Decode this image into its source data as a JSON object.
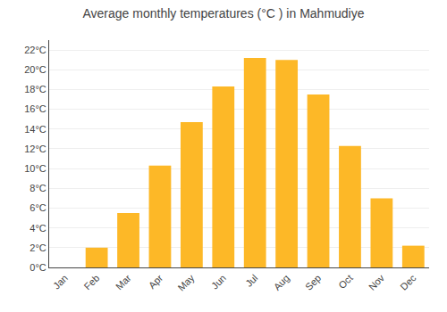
{
  "chart_data": {
    "type": "bar",
    "title": "Average monthly temperatures (°C ) in Mahmudiye",
    "categories": [
      "Jan",
      "Feb",
      "Mar",
      "Apr",
      "May",
      "Jun",
      "Jul",
      "Aug",
      "Sep",
      "Oct",
      "Nov",
      "Dec"
    ],
    "values": [
      0,
      2,
      5.5,
      10.3,
      14.7,
      18.3,
      21.2,
      21.0,
      17.5,
      12.3,
      7.0,
      2.2
    ],
    "color": "#FDB827",
    "ylim": [
      0,
      23
    ],
    "yticks": [
      {
        "value": 0,
        "label": "0°C"
      },
      {
        "value": 2,
        "label": "2°C"
      },
      {
        "value": 4,
        "label": "4°C"
      },
      {
        "value": 6,
        "label": "6°C"
      },
      {
        "value": 8,
        "label": "8°C"
      },
      {
        "value": 10,
        "label": "10°C"
      },
      {
        "value": 12,
        "label": "12°C"
      },
      {
        "value": 14,
        "label": "14°C"
      },
      {
        "value": 16,
        "label": "16°C"
      },
      {
        "value": 18,
        "label": "18°C"
      },
      {
        "value": 20,
        "label": "20°C"
      },
      {
        "value": 22,
        "label": "22°C"
      }
    ],
    "grid": true
  }
}
